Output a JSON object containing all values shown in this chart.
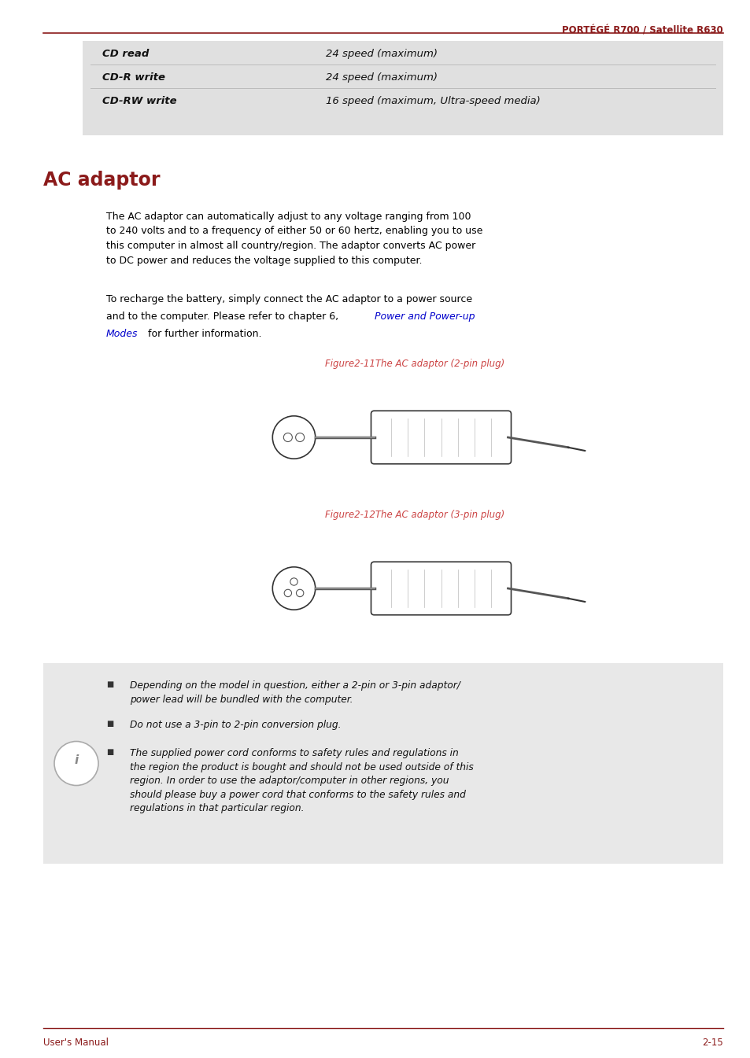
{
  "page_width": 9.54,
  "page_height": 13.45,
  "bg_color": "#ffffff",
  "header_text": "PORTÉGÉ R700 / Satellite R630",
  "header_color": "#8b1a1a",
  "header_line_color": "#8b1a1a",
  "footer_left": "User's Manual",
  "footer_right": "2-15",
  "footer_color": "#8b1a1a",
  "footer_line_color": "#8b1a1a",
  "table_bg": "#e0e0e0",
  "table_rows": [
    {
      "label": "CD read",
      "value": "24 speed (maximum)"
    },
    {
      "label": "CD-R write",
      "value": "24 speed (maximum)"
    },
    {
      "label": "CD-RW write",
      "value": "16 speed (maximum, Ultra-speed media)"
    }
  ],
  "section_title": "AC adaptor",
  "section_title_color": "#8b1a1a",
  "body_color": "#000000",
  "para1": "The AC adaptor can automatically adjust to any voltage ranging from 100\nto 240 volts and to a frequency of either 50 or 60 hertz, enabling you to use\nthis computer in almost all country/region. The adaptor converts AC power\nto DC power and reduces the voltage supplied to this computer.",
  "link_color": "#0000cc",
  "fig1_caption": "Figure2-11The AC adaptor (2-pin plug)",
  "fig2_caption": "Figure2-12The AC adaptor (3-pin plug)",
  "caption_color": "#cc4444",
  "note_bg": "#e8e8e8",
  "note_bullet_color": "#333333",
  "note_texts": [
    "Depending on the model in question, either a 2-pin or 3-pin adaptor/\npower lead will be bundled with the computer.",
    "Do not use a 3-pin to 2-pin conversion plug.",
    "The supplied power cord conforms to safety rules and regulations in\nthe region the product is bought and should not be used outside of this\nregion. In order to use the adaptor/computer in other regions, you\nshould please buy a power cord that conforms to the safety rules and\nregulations in that particular region."
  ]
}
